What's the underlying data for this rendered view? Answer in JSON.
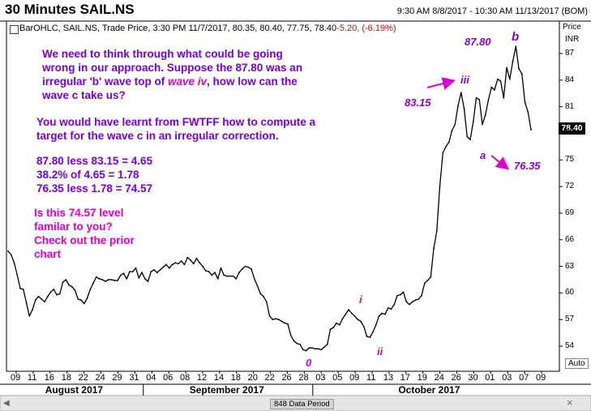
{
  "header": {
    "title": "30 Minutes SAIL.NS",
    "range": "9:30 AM 8/8/2017 - 10:30 AM 11/13/2017 (BOM)"
  },
  "legend": {
    "text": "BarOHLC, SAIL.NS, Trade Price, 3:30 PM 11/7/2017, 80.35, 80.40, 77.75, 78.40",
    "change": "-5.20, (-6.19%)"
  },
  "axis": {
    "price_label": "Price",
    "currency_label": "INR",
    "last_price": "78.40",
    "auto_button": "Auto",
    "data_period": "848 Data Period",
    "close_icon": "×"
  },
  "notes": {
    "para1_a": "We need to think through what could be going\nwrong in our approach. Suppose the 87.80 was an\nirregular 'b' wave top of ",
    "para1_emph": "wave iv",
    "para1_b": ", how low can the\nwave c take us?",
    "para2": "You would have learnt from FWTFF how to compute a\ntarget for the wave c in an irregular correction.",
    "calc": "87.80 less 83.15 = 4.65\n38.2% of 4.65 = 1.78\n76.35 less 1.78 = 74.57",
    "question": "Is this 74.57 level\nfamilar to you?\nCheck out the prior\nchart"
  },
  "annotations": {
    "b_value": "87.80",
    "b_label": "b",
    "iii_label": "iii",
    "iii_value": "83.15",
    "a_label": "a",
    "a_value": "76.35",
    "zero_label": "0",
    "i_label": "i",
    "ii_label": "ii"
  },
  "colors": {
    "annotation_purple": "#8a00e0",
    "annotation_pink": "#e000d0",
    "price_line": "#000000",
    "change_red": "#e00000"
  },
  "chart_data": {
    "type": "line",
    "series": [
      {
        "values": [
          64.7,
          64.3,
          63.4,
          62.0,
          60.5,
          60.4,
          58.9,
          57.4,
          58.1,
          59.2,
          59.6,
          59.3,
          59.0,
          59.6,
          60.1,
          60.4,
          59.8,
          59.9,
          61.2,
          61.5,
          60.9,
          60.7,
          60.3,
          59.3,
          59.2,
          58.8,
          59.4,
          60.4,
          61.1,
          61.8,
          61.6,
          61.5,
          61.3,
          61.5,
          61.5,
          61.4,
          61.4,
          62.0,
          62.2,
          61.6,
          62.4,
          62.4,
          62.8,
          61.7,
          62.3,
          61.6,
          61.3,
          62.4,
          62.6,
          62.3,
          62.6,
          62.9,
          63.2,
          62.8,
          63.2,
          63.4,
          63.3,
          63.6,
          63.2,
          64.0,
          63.7,
          63.3,
          63.9,
          63.4,
          63.0,
          62.5,
          62.4,
          62.0,
          62.3,
          61.6,
          62.8,
          62.0,
          61.9,
          61.9,
          61.9,
          61.6,
          62.3,
          62.7,
          63.0,
          62.9,
          62.7,
          61.6,
          60.8,
          59.9,
          59.6,
          59.0,
          57.4,
          57.0,
          57.1,
          57.0,
          56.8,
          56.6,
          56.5,
          55.2,
          54.6,
          54.3,
          54.2,
          53.6,
          53.5,
          53.8,
          53.8,
          53.7,
          53.7,
          53.6,
          53.9,
          54.2,
          55.9,
          56.1,
          56.6,
          56.4,
          57.1,
          57.6,
          58.1,
          57.7,
          57.4,
          57.0,
          56.8,
          56.2,
          55.1,
          55.0,
          55.6,
          56.4,
          57.4,
          57.7,
          57.6,
          58.3,
          58.2,
          58.7,
          59.7,
          59.8,
          60.1,
          59.0,
          58.7,
          59.0,
          59.2,
          59.3,
          59.7,
          61.1,
          61.4,
          61.8,
          65.0,
          67.0,
          72.0,
          75.8,
          76.5,
          77.0,
          78.3,
          79.0,
          81.1,
          82.6,
          80.8,
          77.6,
          77.3,
          79.3,
          82.0,
          81.8,
          79.0,
          80.1,
          81.8,
          83.2,
          82.9,
          84.1,
          83.9,
          82.0,
          85.4,
          84.1,
          86.1,
          87.8,
          85.3,
          84.7,
          81.5,
          80.4,
          78.4
        ]
      }
    ],
    "x_ticks": [
      "09",
      "11",
      "16",
      "18",
      "22",
      "24",
      "29",
      "31",
      "04",
      "06",
      "08",
      "12",
      "14",
      "18",
      "20",
      "22",
      "26",
      "28",
      "03",
      "05",
      "09",
      "11",
      "13",
      "17",
      "19",
      "24",
      "26",
      "30",
      "01",
      "03",
      "07",
      "09"
    ],
    "months": [
      "August 2017",
      "September 2017",
      "October 2017"
    ],
    "y_ticks": [
      54,
      57,
      60,
      63,
      66,
      69,
      72,
      75,
      78,
      81,
      84,
      87
    ],
    "ylim": [
      52.5,
      89.5
    ],
    "ylabel": "Price",
    "title": "30 Minutes SAIL.NS"
  }
}
